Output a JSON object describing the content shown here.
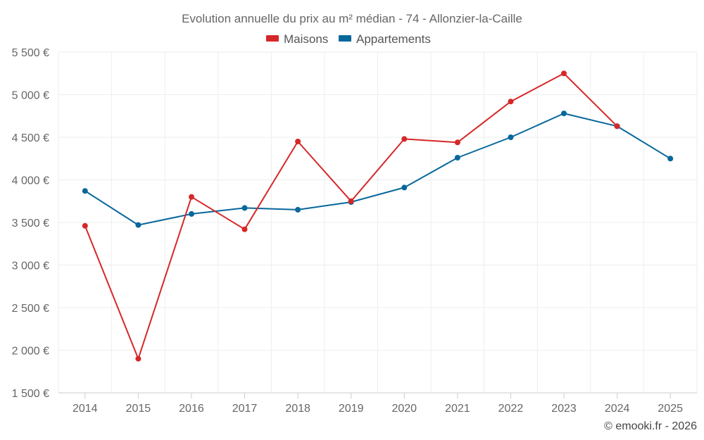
{
  "chart_data": {
    "type": "line",
    "title": "Evolution annuelle du prix au m² médian - 74 - Allonzier-la-Caille",
    "categories": [
      "2014",
      "2015",
      "2016",
      "2017",
      "2018",
      "2019",
      "2020",
      "2021",
      "2022",
      "2023",
      "2024",
      "2025"
    ],
    "series": [
      {
        "name": "Maisons",
        "color": "#d62728",
        "values": [
          3460,
          1900,
          3800,
          3420,
          4450,
          3750,
          4480,
          4440,
          4920,
          5250,
          4630,
          null
        ]
      },
      {
        "name": "Appartements",
        "color": "#08679b",
        "values": [
          3870,
          3470,
          3600,
          3670,
          3650,
          3740,
          3910,
          4260,
          4500,
          4780,
          4630,
          4250
        ]
      }
    ],
    "ylim": [
      1500,
      5500
    ],
    "yticks": [
      "1 500 €",
      "2 000 €",
      "2 500 €",
      "3 000 €",
      "3 500 €",
      "4 000 €",
      "4 500 €",
      "5 000 €",
      "5 500 €"
    ],
    "ytick_values": [
      1500,
      2000,
      2500,
      3000,
      3500,
      4000,
      4500,
      5000,
      5500
    ],
    "legend_position": "top-center",
    "grid": true,
    "credit": "© emooki.fr - 2026"
  }
}
